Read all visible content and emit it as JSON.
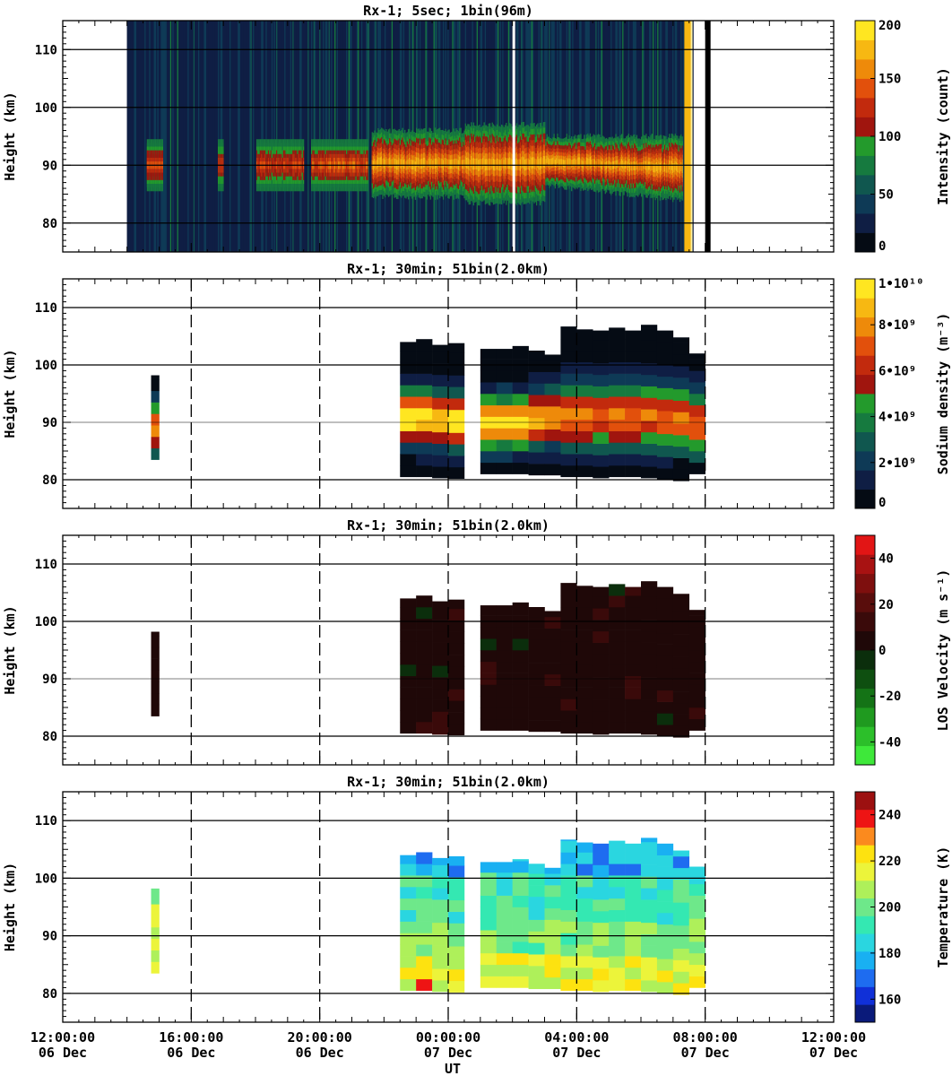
{
  "xaxis": {
    "label": "UT",
    "range_hours": [
      12,
      36
    ],
    "ticks": [
      {
        "hour": 12,
        "time": "12:00:00",
        "date": "06 Dec"
      },
      {
        "hour": 16,
        "time": "16:00:00",
        "date": "06 Dec"
      },
      {
        "hour": 20,
        "time": "20:00:00",
        "date": "06 Dec"
      },
      {
        "hour": 24,
        "time": "00:00:00",
        "date": "07 Dec"
      },
      {
        "hour": 28,
        "time": "04:00:00",
        "date": "07 Dec"
      },
      {
        "hour": 32,
        "time": "08:00:00",
        "date": "07 Dec"
      },
      {
        "hour": 36,
        "time": "12:00:00",
        "date": "07 Dec"
      }
    ]
  },
  "chart_data": [
    {
      "type": "heatmap",
      "title": "Rx-1;  5sec; 1bin(96m)",
      "ylabel": "Height (km)",
      "ylim": [
        75,
        115
      ],
      "yticks": [
        80,
        90,
        100,
        110
      ],
      "colorbar": {
        "label": "Intensity (count)",
        "range": [
          0,
          200
        ],
        "ticks": [
          {
            "v": 0,
            "label": "0"
          },
          {
            "v": 50,
            "label": "50"
          },
          {
            "v": 100,
            "label": "100"
          },
          {
            "v": 150,
            "label": "150"
          },
          {
            "v": 200,
            "label": "200"
          }
        ],
        "colors": [
          "#050b14",
          "#0f1e44",
          "#0e3a56",
          "#10574f",
          "#167a3f",
          "#239a2c",
          "#a0150e",
          "#c22a0d",
          "#e2500c",
          "#ee8a0a",
          "#f7b812",
          "#ffe621"
        ]
      },
      "data_coverage_hours": [
        14.0,
        31.6
      ],
      "layer": {
        "center_km": 90,
        "top_km_range": [
          93,
          98
        ],
        "bottom_km_range": [
          82,
          86
        ]
      }
    },
    {
      "type": "heatmap",
      "title": "Rx-1; 30min; 51bin(2.0km)",
      "ylabel": "Height (km)",
      "ylim": [
        75,
        115
      ],
      "yticks": [
        80,
        90,
        100,
        110
      ],
      "colorbar": {
        "label": "Sodium density (m⁻³)",
        "range": [
          0,
          10000000000
        ],
        "ticks": [
          {
            "v": 0,
            "label": "0"
          },
          {
            "v": 2000000000,
            "label": "2•10⁹"
          },
          {
            "v": 4000000000,
            "label": "4•10⁹"
          },
          {
            "v": 6000000000,
            "label": "6•10⁹"
          },
          {
            "v": 8000000000,
            "label": "8•10⁹"
          },
          {
            "v": 10000000000,
            "label": "1•10¹⁰"
          }
        ],
        "colors": [
          "#050b14",
          "#0f1e44",
          "#0e3a56",
          "#10574f",
          "#167a3f",
          "#239a2c",
          "#a0150e",
          "#c22a0d",
          "#e2500c",
          "#ee8a0a",
          "#f7b812",
          "#ffe621"
        ]
      },
      "columns": [
        {
          "t0": 14.75,
          "t1": 15.0,
          "bottom": 83.5,
          "top": 98.2,
          "peak": 89,
          "amp": 0.78
        },
        {
          "t0": 22.5,
          "t1": 23.0,
          "bottom": 80.5,
          "top": 104.0,
          "peak": 91,
          "amp": 0.98
        },
        {
          "t0": 23.0,
          "t1": 23.5,
          "bottom": 80.5,
          "top": 104.5,
          "peak": 91,
          "amp": 0.95
        },
        {
          "t0": 23.5,
          "t1": 24.0,
          "bottom": 80.3,
          "top": 103.5,
          "peak": 90.5,
          "amp": 0.9
        },
        {
          "t0": 24.0,
          "t1": 24.5,
          "bottom": 80.2,
          "top": 103.8,
          "peak": 90,
          "amp": 0.96
        },
        {
          "t0": 25.0,
          "t1": 25.5,
          "bottom": 81.0,
          "top": 102.8,
          "peak": 90,
          "amp": 0.97
        },
        {
          "t0": 25.5,
          "t1": 26.0,
          "bottom": 81.0,
          "top": 102.8,
          "peak": 90,
          "amp": 0.96
        },
        {
          "t0": 26.0,
          "t1": 26.5,
          "bottom": 81.0,
          "top": 103.3,
          "peak": 90,
          "amp": 0.92
        },
        {
          "t0": 26.5,
          "t1": 27.0,
          "bottom": 80.8,
          "top": 102.5,
          "peak": 90.5,
          "amp": 0.88
        },
        {
          "t0": 27.0,
          "t1": 27.5,
          "bottom": 80.8,
          "top": 101.8,
          "peak": 91,
          "amp": 0.8
        },
        {
          "t0": 27.5,
          "t1": 28.0,
          "bottom": 80.5,
          "top": 106.7,
          "peak": 91,
          "amp": 0.74
        },
        {
          "t0": 28.0,
          "t1": 28.5,
          "bottom": 80.5,
          "top": 106.2,
          "peak": 91,
          "amp": 0.72
        },
        {
          "t0": 28.5,
          "t1": 29.0,
          "bottom": 80.3,
          "top": 106.0,
          "peak": 91,
          "amp": 0.7
        },
        {
          "t0": 29.0,
          "t1": 29.5,
          "bottom": 80.5,
          "top": 106.5,
          "peak": 91,
          "amp": 0.72
        },
        {
          "t0": 29.5,
          "t1": 30.0,
          "bottom": 80.5,
          "top": 106.0,
          "peak": 91,
          "amp": 0.72
        },
        {
          "t0": 30.0,
          "t1": 30.5,
          "bottom": 80.3,
          "top": 107.0,
          "peak": 91,
          "amp": 0.7
        },
        {
          "t0": 30.5,
          "t1": 31.0,
          "bottom": 80.0,
          "top": 106.0,
          "peak": 91,
          "amp": 0.7
        },
        {
          "t0": 31.0,
          "t1": 31.5,
          "bottom": 79.8,
          "top": 104.8,
          "peak": 90.5,
          "amp": 0.72
        },
        {
          "t0": 31.5,
          "t1": 32.0,
          "bottom": 81.0,
          "top": 102.0,
          "peak": 89.5,
          "amp": 0.7
        }
      ]
    },
    {
      "type": "heatmap",
      "title": "Rx-1; 30min; 51bin(2.0km)",
      "ylabel": "Height (km)",
      "ylim": [
        75,
        115
      ],
      "yticks": [
        80,
        90,
        100,
        110
      ],
      "colorbar": {
        "label": "LOS Velocity (m s⁻¹)",
        "range": [
          -50,
          50
        ],
        "ticks": [
          {
            "v": -40,
            "label": "-40"
          },
          {
            "v": -20,
            "label": "-20"
          },
          {
            "v": 0,
            "label": "0"
          },
          {
            "v": 20,
            "label": "20"
          },
          {
            "v": 40,
            "label": "40"
          }
        ],
        "colors": [
          "#3ee83a",
          "#2cbf2a",
          "#1f9a1f",
          "#147316",
          "#0e4f10",
          "#0b2e0c",
          "#1f0808",
          "#3a0a0a",
          "#590d0c",
          "#7e0f0e",
          "#a81212",
          "#e21515"
        ]
      },
      "dominant_value": 4
    },
    {
      "type": "heatmap",
      "title": "Rx-1; 30min; 51bin(2.0km)",
      "ylabel": "Height (km)",
      "ylim": [
        75,
        115
      ],
      "yticks": [
        80,
        90,
        100,
        110
      ],
      "colorbar": {
        "label": "Temperature (K)",
        "range": [
          150,
          250
        ],
        "ticks": [
          {
            "v": 160,
            "label": "160"
          },
          {
            "v": 180,
            "label": "180"
          },
          {
            "v": 200,
            "label": "200"
          },
          {
            "v": 220,
            "label": "220"
          },
          {
            "v": 240,
            "label": "240"
          }
        ],
        "colors": [
          "#0a1a7a",
          "#1030d8",
          "#1e6cf0",
          "#19b0f2",
          "#2ad6e0",
          "#34e8b2",
          "#6ee88a",
          "#aef05a",
          "#ecf43a",
          "#fde210",
          "#fb8a1e",
          "#ee1414",
          "#9c1010"
        ]
      }
    }
  ]
}
